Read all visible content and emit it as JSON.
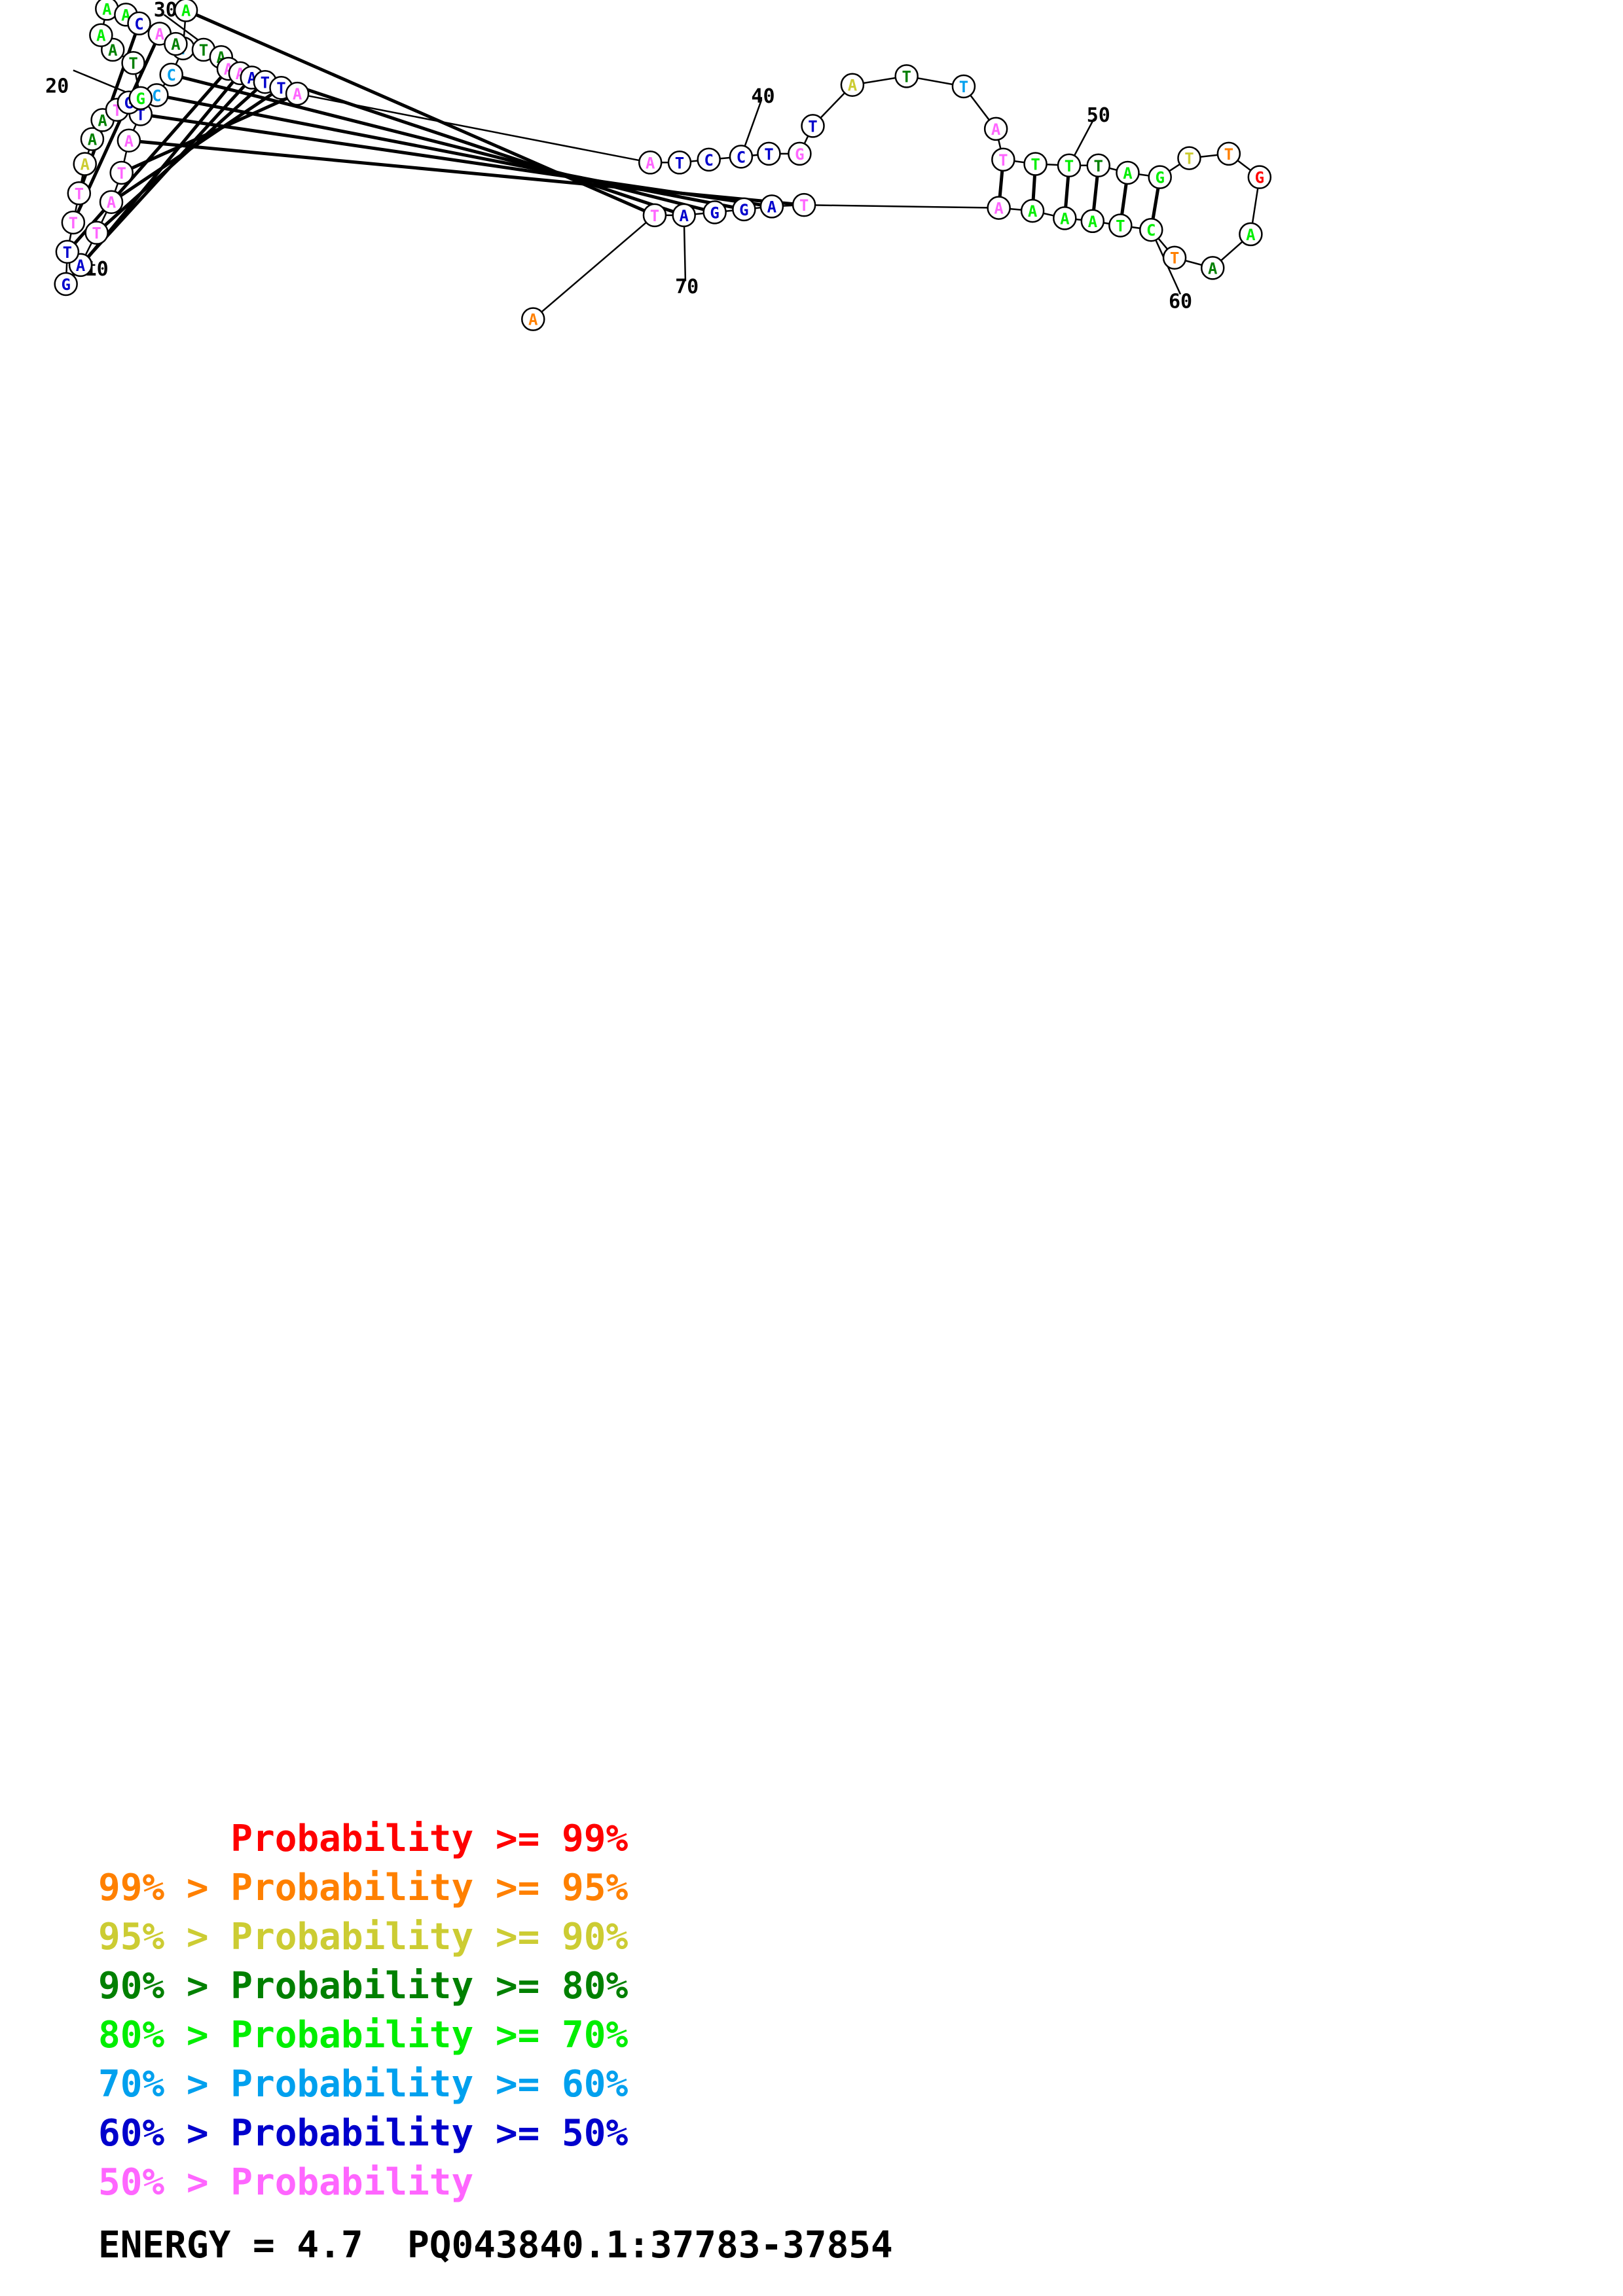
{
  "structure": {
    "colors": {
      "p99": "#ff0000",
      "p95": "#ff8000",
      "p90": "#cccc33",
      "p80": "#008000",
      "p70": "#00ee00",
      "p60": "#00a0ee",
      "p50": "#0000cc",
      "low": "#ff66ff"
    },
    "nucleotides": [
      {
        "n": 1,
        "base": "A",
        "prob": "p70"
      },
      {
        "n": 2,
        "base": "T",
        "prob": "p60"
      },
      {
        "n": 3,
        "base": "C",
        "prob": "p60"
      },
      {
        "n": 4,
        "base": "C",
        "prob": "p60"
      },
      {
        "n": 5,
        "base": "T",
        "prob": "p50"
      },
      {
        "n": 6,
        "base": "A",
        "prob": "low"
      },
      {
        "n": 7,
        "base": "T",
        "prob": "low"
      },
      {
        "n": 8,
        "base": "A",
        "prob": "low"
      },
      {
        "n": 9,
        "base": "T",
        "prob": "low"
      },
      {
        "n": 10,
        "base": "A",
        "prob": "p50"
      },
      {
        "n": 11,
        "base": "G",
        "prob": "p50"
      },
      {
        "n": 12,
        "base": "T",
        "prob": "p50"
      },
      {
        "n": 13,
        "base": "T",
        "prob": "low"
      },
      {
        "n": 14,
        "base": "T",
        "prob": "low"
      },
      {
        "n": 15,
        "base": "A",
        "prob": "p90"
      },
      {
        "n": 16,
        "base": "A",
        "prob": "p80"
      },
      {
        "n": 17,
        "base": "A",
        "prob": "p80"
      },
      {
        "n": 18,
        "base": "T",
        "prob": "low"
      },
      {
        "n": 19,
        "base": "G",
        "prob": "p50"
      },
      {
        "n": 20,
        "base": "G",
        "prob": "p70"
      },
      {
        "n": 21,
        "base": "T",
        "prob": "p80"
      },
      {
        "n": 22,
        "base": "A",
        "prob": "p80"
      },
      {
        "n": 23,
        "base": "A",
        "prob": "p70"
      },
      {
        "n": 24,
        "base": "A",
        "prob": "p70"
      },
      {
        "n": 25,
        "base": "A",
        "prob": "p70"
      },
      {
        "n": 26,
        "base": "C",
        "prob": "p50"
      },
      {
        "n": 27,
        "base": "A",
        "prob": "low"
      },
      {
        "n": 28,
        "base": "A",
        "prob": "p80"
      },
      {
        "n": 29,
        "base": "T",
        "prob": "p80"
      },
      {
        "n": 30,
        "base": "A",
        "prob": "p80"
      },
      {
        "n": 31,
        "base": "A",
        "prob": "low"
      },
      {
        "n": 32,
        "base": "A",
        "prob": "low"
      },
      {
        "n": 33,
        "base": "A",
        "prob": "p50"
      },
      {
        "n": 34,
        "base": "T",
        "prob": "p50"
      },
      {
        "n": 35,
        "base": "T",
        "prob": "p50"
      },
      {
        "n": 36,
        "base": "A",
        "prob": "low"
      },
      {
        "n": 37,
        "base": "A",
        "prob": "low"
      },
      {
        "n": 38,
        "base": "T",
        "prob": "p50"
      },
      {
        "n": 39,
        "base": "C",
        "prob": "p50"
      },
      {
        "n": 40,
        "base": "C",
        "prob": "p50"
      },
      {
        "n": 41,
        "base": "T",
        "prob": "p50"
      },
      {
        "n": 42,
        "base": "G",
        "prob": "low"
      },
      {
        "n": 43,
        "base": "T",
        "prob": "p50"
      },
      {
        "n": 44,
        "base": "A",
        "prob": "p90"
      },
      {
        "n": 45,
        "base": "T",
        "prob": "p80"
      },
      {
        "n": 46,
        "base": "T",
        "prob": "p60"
      },
      {
        "n": 47,
        "base": "A",
        "prob": "low"
      },
      {
        "n": 48,
        "base": "T",
        "prob": "low"
      },
      {
        "n": 49,
        "base": "T",
        "prob": "p70"
      },
      {
        "n": 50,
        "base": "T",
        "prob": "p70"
      },
      {
        "n": 51,
        "base": "T",
        "prob": "p80"
      },
      {
        "n": 52,
        "base": "A",
        "prob": "p70"
      },
      {
        "n": 53,
        "base": "G",
        "prob": "p70"
      },
      {
        "n": 54,
        "base": "T",
        "prob": "p90"
      },
      {
        "n": 55,
        "base": "T",
        "prob": "p95"
      },
      {
        "n": 56,
        "base": "G",
        "prob": "p99"
      },
      {
        "n": 57,
        "base": "A",
        "prob": "p70"
      },
      {
        "n": 58,
        "base": "A",
        "prob": "p80"
      },
      {
        "n": 59,
        "base": "T",
        "prob": "p95"
      },
      {
        "n": 60,
        "base": "C",
        "prob": "p70"
      },
      {
        "n": 61,
        "base": "T",
        "prob": "p70"
      },
      {
        "n": 62,
        "base": "A",
        "prob": "p70"
      },
      {
        "n": 63,
        "base": "A",
        "prob": "p70"
      },
      {
        "n": 64,
        "base": "A",
        "prob": "p70"
      },
      {
        "n": 65,
        "base": "A",
        "prob": "low"
      },
      {
        "n": 66,
        "base": "T",
        "prob": "low"
      },
      {
        "n": 67,
        "base": "A",
        "prob": "p50"
      },
      {
        "n": 68,
        "base": "G",
        "prob": "p50"
      },
      {
        "n": 69,
        "base": "G",
        "prob": "p50"
      },
      {
        "n": 70,
        "base": "A",
        "prob": "p50"
      },
      {
        "n": 71,
        "base": "T",
        "prob": "low"
      },
      {
        "n": 72,
        "base": "A",
        "prob": "p95"
      }
    ],
    "position_labels": [
      "10",
      "20",
      "30",
      "40",
      "50",
      "60",
      "70"
    ]
  },
  "legend": [
    {
      "prefix": "",
      "text": "Probability >= 99%",
      "color": "#ff0000"
    },
    {
      "prefix": "99% > ",
      "text": "Probability >= 95%",
      "color": "#ff8000"
    },
    {
      "prefix": "95% > ",
      "text": "Probability >= 90%",
      "color": "#cccc33"
    },
    {
      "prefix": "90% > ",
      "text": "Probability >= 80%",
      "color": "#008000"
    },
    {
      "prefix": "80% > ",
      "text": "Probability >= 70%",
      "color": "#00ee00"
    },
    {
      "prefix": "70% > ",
      "text": "Probability >= 60%",
      "color": "#00a0ee"
    },
    {
      "prefix": "60% > ",
      "text": "Probability >= 50%",
      "color": "#0000cc"
    },
    {
      "prefix": "50% > ",
      "text": "Probability",
      "color": "#ff66ff"
    }
  ],
  "footer": {
    "energy_label": "ENERGY = 4.7  PQ043840.1:37783-37854"
  }
}
